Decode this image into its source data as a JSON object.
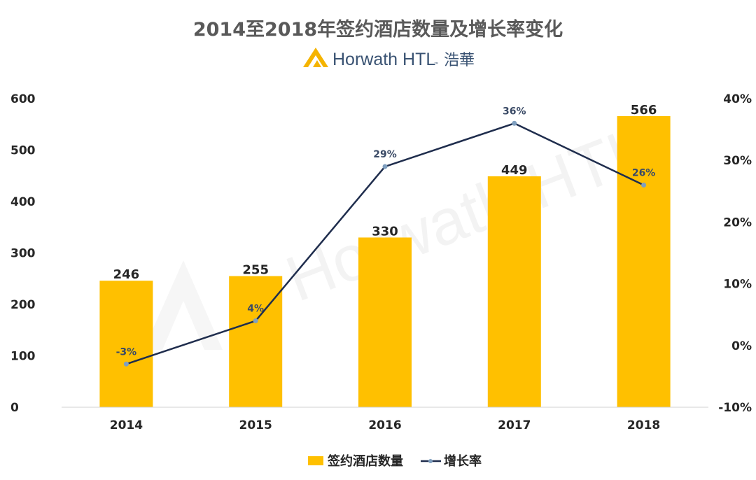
{
  "chart_data": {
    "type": "bar",
    "title": "2014至2018年签约酒店数量及增长率变化",
    "brand": {
      "name": "Horwath HTL",
      "trademark": "™",
      "chinese": "浩華"
    },
    "watermark": "Horwath HTL",
    "categories": [
      "2014",
      "2015",
      "2016",
      "2017",
      "2018"
    ],
    "series": [
      {
        "name": "签约酒店数量",
        "type": "bar",
        "axis": "left",
        "values": [
          246,
          255,
          330,
          449,
          566
        ],
        "labels": [
          "246",
          "255",
          "330",
          "449",
          "566"
        ],
        "color": "#ffc000"
      },
      {
        "name": "增长率",
        "type": "line",
        "axis": "right",
        "values": [
          -3,
          4,
          29,
          36,
          26
        ],
        "labels": [
          "-3%",
          "4%",
          "29%",
          "36%",
          "26%"
        ],
        "color": "#1f2d4d",
        "marker_color": "#7f9fbf"
      }
    ],
    "y_left": {
      "min": 0,
      "max": 600,
      "ticks": [
        0,
        100,
        200,
        300,
        400,
        500,
        600
      ],
      "tick_labels": [
        "0",
        "100",
        "200",
        "300",
        "400",
        "500",
        "600"
      ]
    },
    "y_right": {
      "min": -10,
      "max": 40,
      "ticks": [
        -10,
        0,
        10,
        20,
        30,
        40
      ],
      "tick_labels": [
        "-10%",
        "0%",
        "10%",
        "20%",
        "30%",
        "40%"
      ]
    },
    "grid": false,
    "legend_position": "bottom"
  }
}
